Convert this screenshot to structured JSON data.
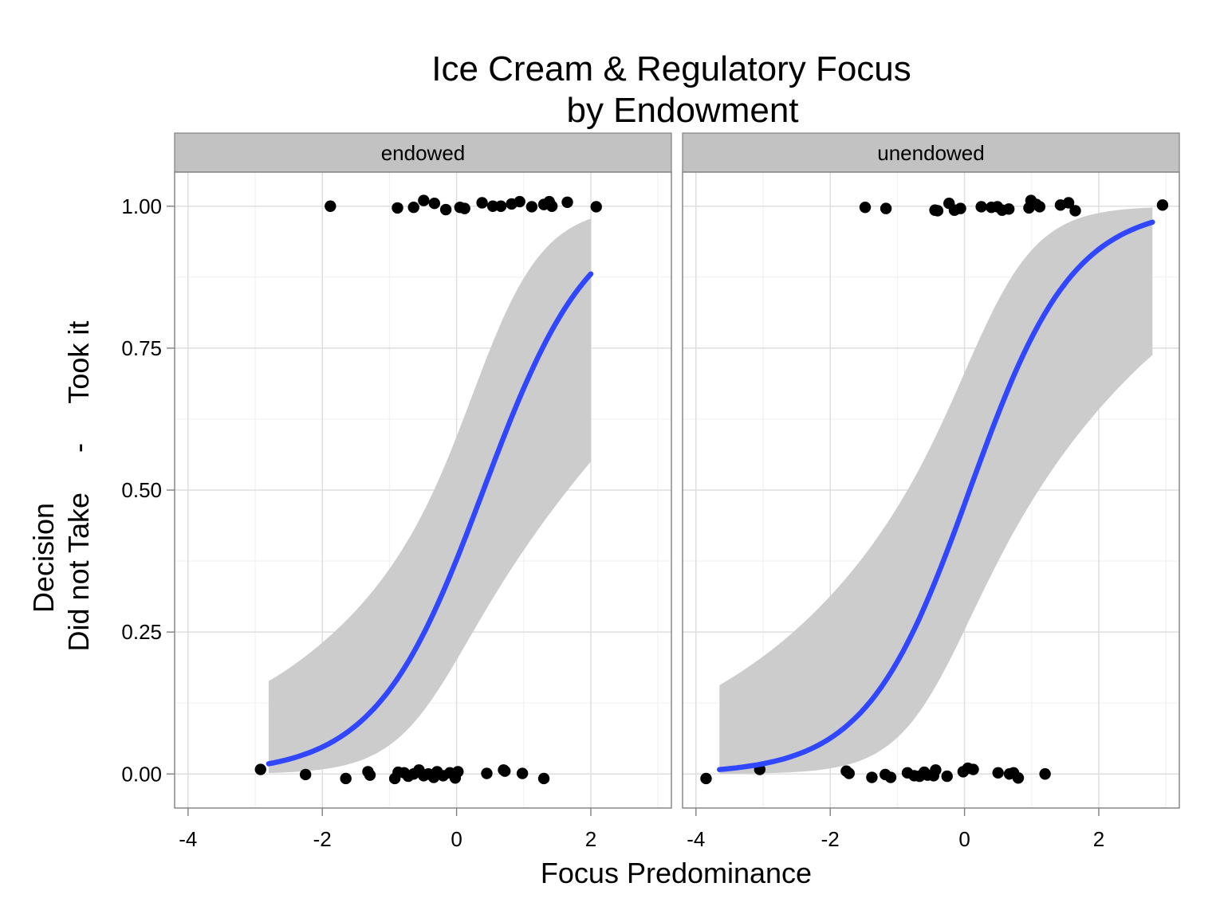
{
  "chart_data": {
    "type": "scatter",
    "title_lines": [
      "Ice Cream & Regulatory Focus",
      "by Endowment"
    ],
    "xlabel": "Focus Predominance",
    "ylabel_lines": [
      "Decision",
      "Did not Take     -     Took it"
    ],
    "xlim": [
      -4.2,
      3.2
    ],
    "ylim": [
      -0.06,
      1.06
    ],
    "x_ticks": [
      -4,
      -2,
      0,
      2
    ],
    "x_tick_labels": [
      "-4",
      "-2",
      "0",
      "2"
    ],
    "y_ticks": [
      0,
      0.25,
      0.5,
      0.75,
      1.0
    ],
    "y_tick_labels": [
      "0.00",
      "0.25",
      "0.50",
      "0.75",
      "1.00"
    ],
    "grid": true,
    "colors": {
      "panel_bg": "#ffffff",
      "strip_bg": "#c2c2c2",
      "grid_major": "#dedede",
      "grid_minor": "#f1f1f1",
      "ribbon": "#cccccc",
      "line": "#3047ff",
      "point": "#000000",
      "border": "#7f7f7f"
    },
    "panels": [
      {
        "label": "endowed",
        "fit": {
          "intercept": -0.5,
          "slope": 1.25,
          "x_range": [
            -2.8,
            2.0
          ],
          "se_a": 0.45,
          "se_b": 0.4
        },
        "points": [
          {
            "x": -1.88,
            "y": 1.0
          },
          {
            "x": -0.88,
            "y": 0.997
          },
          {
            "x": -0.64,
            "y": 0.998
          },
          {
            "x": -0.49,
            "y": 1.01
          },
          {
            "x": -0.33,
            "y": 1.005
          },
          {
            "x": -0.16,
            "y": 0.994
          },
          {
            "x": 0.05,
            "y": 0.998
          },
          {
            "x": 0.12,
            "y": 0.996
          },
          {
            "x": 0.38,
            "y": 1.006
          },
          {
            "x": 0.54,
            "y": 1.0
          },
          {
            "x": 0.66,
            "y": 1.0
          },
          {
            "x": 0.82,
            "y": 1.004
          },
          {
            "x": 0.94,
            "y": 1.008
          },
          {
            "x": 1.12,
            "y": 0.999
          },
          {
            "x": 1.3,
            "y": 1.003
          },
          {
            "x": 1.38,
            "y": 1.008
          },
          {
            "x": 1.42,
            "y": 1.0
          },
          {
            "x": 1.65,
            "y": 1.007
          },
          {
            "x": 2.08,
            "y": 0.999
          },
          {
            "x": -2.92,
            "y": 0.008
          },
          {
            "x": -2.25,
            "y": -0.001
          },
          {
            "x": -1.65,
            "y": -0.008
          },
          {
            "x": -1.32,
            "y": 0.004
          },
          {
            "x": -1.29,
            "y": -0.002
          },
          {
            "x": -0.92,
            "y": -0.008
          },
          {
            "x": -0.87,
            "y": 0.003
          },
          {
            "x": -0.78,
            "y": 0.002
          },
          {
            "x": -0.72,
            "y": -0.004
          },
          {
            "x": -0.64,
            "y": 0.0
          },
          {
            "x": -0.56,
            "y": 0.007
          },
          {
            "x": -0.49,
            "y": -0.003
          },
          {
            "x": -0.42,
            "y": 0.0
          },
          {
            "x": -0.34,
            "y": -0.006
          },
          {
            "x": -0.29,
            "y": 0.004
          },
          {
            "x": -0.2,
            "y": -0.003
          },
          {
            "x": -0.1,
            "y": 0.002
          },
          {
            "x": -0.02,
            "y": -0.007
          },
          {
            "x": 0.02,
            "y": 0.004
          },
          {
            "x": 0.45,
            "y": 0.001
          },
          {
            "x": 0.7,
            "y": 0.007
          },
          {
            "x": 0.72,
            "y": 0.005
          },
          {
            "x": 0.98,
            "y": 0.001
          },
          {
            "x": 1.3,
            "y": -0.008
          }
        ]
      },
      {
        "label": "unendowed",
        "fit": {
          "intercept": -0.1,
          "slope": 1.3,
          "x_range": [
            -3.65,
            2.8
          ],
          "se_a": 0.5,
          "se_b": 0.42
        },
        "points": [
          {
            "x": -1.48,
            "y": 0.998
          },
          {
            "x": -1.17,
            "y": 0.996
          },
          {
            "x": -0.44,
            "y": 0.993
          },
          {
            "x": -0.4,
            "y": 0.992
          },
          {
            "x": -0.23,
            "y": 1.005
          },
          {
            "x": -0.15,
            "y": 0.993
          },
          {
            "x": -0.06,
            "y": 0.996
          },
          {
            "x": 0.25,
            "y": 0.999
          },
          {
            "x": 0.4,
            "y": 0.998
          },
          {
            "x": 0.49,
            "y": 0.999
          },
          {
            "x": 0.56,
            "y": 0.993
          },
          {
            "x": 0.66,
            "y": 0.995
          },
          {
            "x": 0.96,
            "y": 0.997
          },
          {
            "x": 0.99,
            "y": 1.01
          },
          {
            "x": 1.07,
            "y": 1.003
          },
          {
            "x": 1.12,
            "y": 0.999
          },
          {
            "x": 1.43,
            "y": 1.002
          },
          {
            "x": 1.55,
            "y": 1.006
          },
          {
            "x": 1.65,
            "y": 0.992
          },
          {
            "x": 2.95,
            "y": 1.002
          },
          {
            "x": -3.85,
            "y": -0.008
          },
          {
            "x": -3.05,
            "y": 0.008
          },
          {
            "x": -1.76,
            "y": 0.005
          },
          {
            "x": -1.72,
            "y": 0.001
          },
          {
            "x": -1.38,
            "y": -0.006
          },
          {
            "x": -1.18,
            "y": -0.001
          },
          {
            "x": -1.1,
            "y": -0.006
          },
          {
            "x": -0.85,
            "y": 0.002
          },
          {
            "x": -0.75,
            "y": -0.003
          },
          {
            "x": -0.67,
            "y": -0.004
          },
          {
            "x": -0.6,
            "y": 0.003
          },
          {
            "x": -0.55,
            "y": -0.002
          },
          {
            "x": -0.46,
            "y": -0.003
          },
          {
            "x": -0.43,
            "y": 0.007
          },
          {
            "x": -0.26,
            "y": -0.004
          },
          {
            "x": -0.02,
            "y": 0.004
          },
          {
            "x": 0.05,
            "y": 0.01
          },
          {
            "x": 0.13,
            "y": 0.008
          },
          {
            "x": 0.5,
            "y": 0.002
          },
          {
            "x": 0.67,
            "y": 0.0
          },
          {
            "x": 0.73,
            "y": 0.002
          },
          {
            "x": 0.8,
            "y": -0.007
          },
          {
            "x": 1.2,
            "y": 0.0
          }
        ]
      }
    ]
  }
}
